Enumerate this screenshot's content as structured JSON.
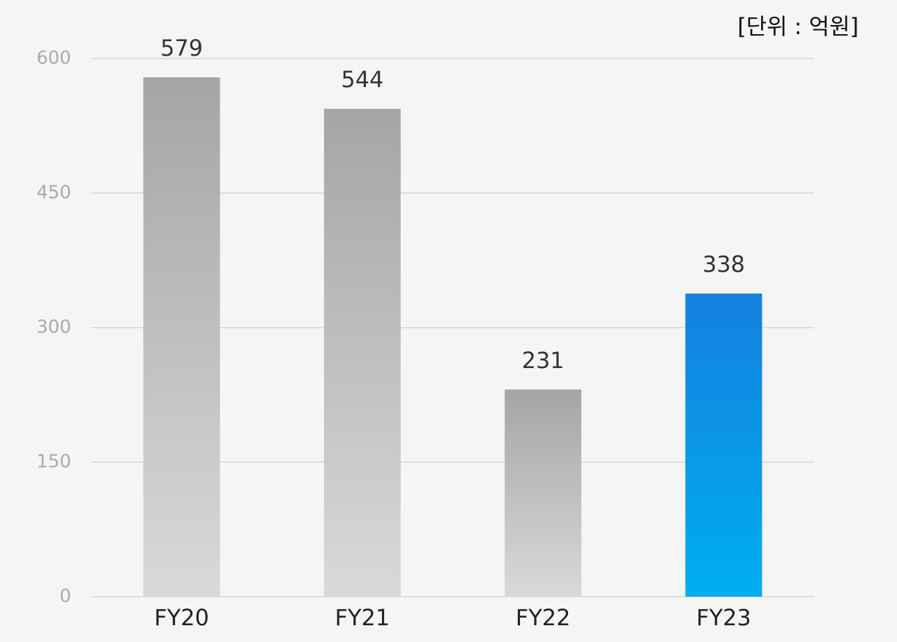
{
  "chart_data": {
    "type": "bar",
    "annotation": "[단위 : 억원]",
    "categories": [
      "FY20",
      "FY21",
      "FY22",
      "FY23"
    ],
    "values": [
      579,
      544,
      231,
      338
    ],
    "colors": [
      [
        "#a5a5a5",
        "#d9d9d9"
      ],
      [
        "#a5a5a5",
        "#d9d9d9"
      ],
      [
        "#a5a5a5",
        "#d9d9d9"
      ],
      [
        "#1480df",
        "#00aeef"
      ]
    ],
    "ylim": [
      0,
      600
    ],
    "yticks": [
      0,
      150,
      300,
      450,
      600
    ],
    "grid": true
  }
}
